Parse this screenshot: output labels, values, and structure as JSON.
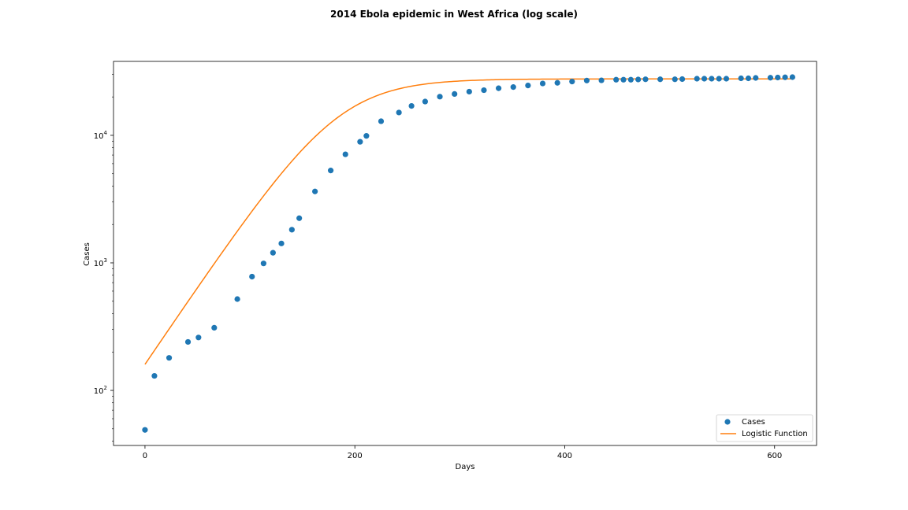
{
  "chart_data": {
    "type": "scatter",
    "title": "2014 Ebola epidemic in West Africa (log scale)",
    "xlabel": "Days",
    "ylabel": "Cases",
    "xlim": [
      -30,
      640
    ],
    "ylim": [
      37,
      38000
    ],
    "yscale": "log",
    "grid": false,
    "legend_position": "bottom-right",
    "x_ticks": [
      0,
      200,
      400,
      600
    ],
    "x_tick_labels": [
      "0",
      "200",
      "400",
      "600"
    ],
    "y_major_ticks": [
      100,
      1000,
      10000
    ],
    "y_tick_labels": [
      {
        "base": "10",
        "exp": "2"
      },
      {
        "base": "10",
        "exp": "3"
      },
      {
        "base": "10",
        "exp": "4"
      }
    ],
    "colors": {
      "cases": "#1f77b4",
      "logistic": "#ff7f0e"
    },
    "series": [
      {
        "name": "Cases",
        "kind": "scatter",
        "points": [
          [
            0,
            49
          ],
          [
            9,
            130
          ],
          [
            23,
            180
          ],
          [
            41,
            240
          ],
          [
            51,
            260
          ],
          [
            66,
            310
          ],
          [
            88,
            520
          ],
          [
            102,
            780
          ],
          [
            113,
            990
          ],
          [
            122,
            1200
          ],
          [
            130,
            1420
          ],
          [
            140,
            1820
          ],
          [
            147,
            2240
          ],
          [
            162,
            3630
          ],
          [
            177,
            5300
          ],
          [
            191,
            7100
          ],
          [
            205,
            8900
          ],
          [
            211,
            9900
          ],
          [
            225,
            12900
          ],
          [
            242,
            15100
          ],
          [
            254,
            17000
          ],
          [
            267,
            18400
          ],
          [
            281,
            20100
          ],
          [
            295,
            21100
          ],
          [
            309,
            22000
          ],
          [
            323,
            22600
          ],
          [
            337,
            23400
          ],
          [
            351,
            23900
          ],
          [
            365,
            24600
          ],
          [
            379,
            25500
          ],
          [
            393,
            25800
          ],
          [
            407,
            26400
          ],
          [
            421,
            26900
          ],
          [
            435,
            27000
          ],
          [
            449,
            27300
          ],
          [
            456,
            27300
          ],
          [
            463,
            27300
          ],
          [
            470,
            27400
          ],
          [
            477,
            27500
          ],
          [
            491,
            27500
          ],
          [
            505,
            27500
          ],
          [
            512,
            27600
          ],
          [
            526,
            27800
          ],
          [
            533,
            27800
          ],
          [
            540,
            27800
          ],
          [
            547,
            27800
          ],
          [
            554,
            27800
          ],
          [
            568,
            28000
          ],
          [
            575,
            28000
          ],
          [
            582,
            28200
          ],
          [
            596,
            28300
          ],
          [
            603,
            28400
          ],
          [
            610,
            28500
          ],
          [
            617,
            28600
          ]
        ]
      },
      {
        "name": "Logistic Function",
        "kind": "line",
        "model": {
          "form": "logistic",
          "K": 27700,
          "N0": 160,
          "r": 0.028
        },
        "x_range": [
          0,
          617
        ]
      }
    ]
  }
}
